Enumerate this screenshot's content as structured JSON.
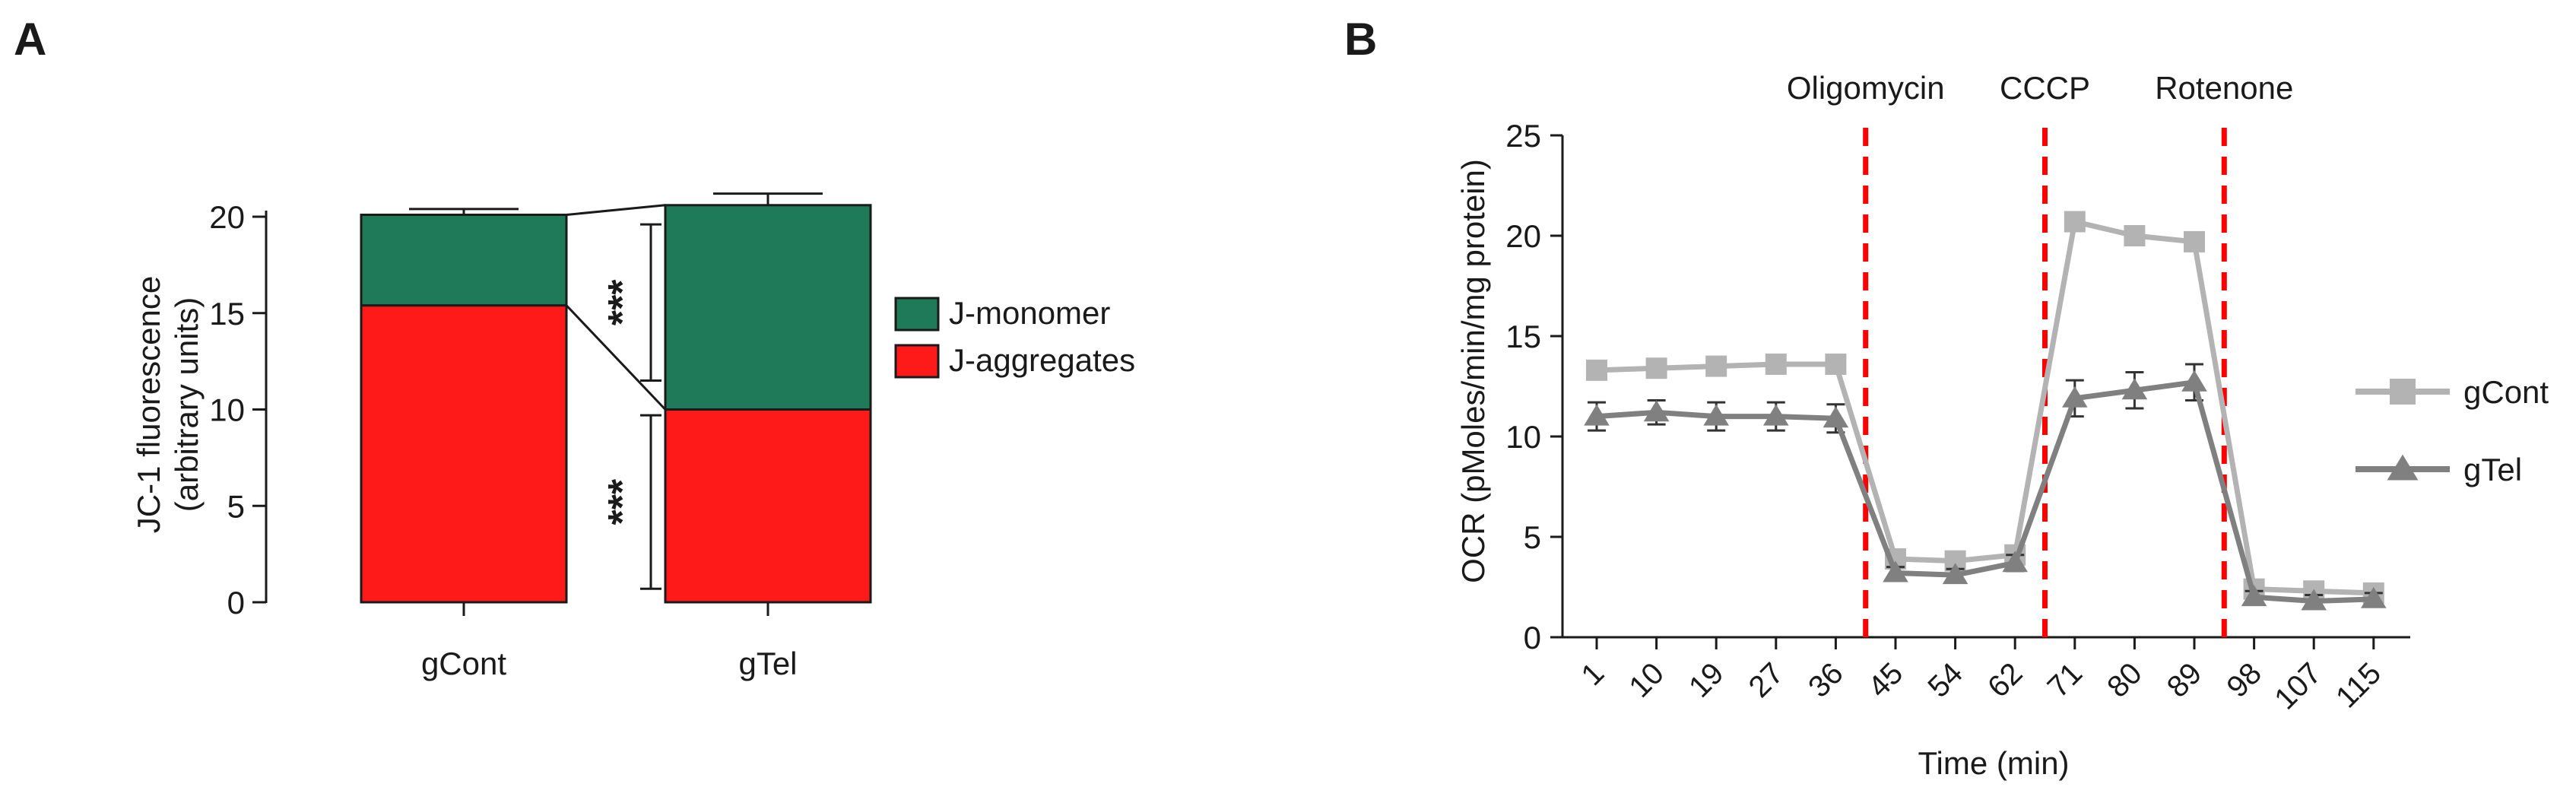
{
  "panels": [
    {
      "label": "A"
    },
    {
      "label": "B"
    }
  ],
  "chart_data": [
    {
      "panel": "A",
      "type": "bar",
      "stacked": true,
      "categories": [
        "gCont",
        "gTel"
      ],
      "series": [
        {
          "name": "J-aggregates",
          "values": [
            15.4,
            10.0
          ],
          "errors": [
            0.6,
            0.4
          ],
          "color": "#ff1a1a"
        },
        {
          "name": "J-monomer",
          "values": [
            4.7,
            10.6
          ],
          "errors": [
            0.3,
            0.6
          ],
          "color": "#1f7a5a"
        }
      ],
      "xlabel": "",
      "ylabel": [
        "JC-1 fluorescence",
        "(arbitrary units)"
      ],
      "ylim": [
        0,
        20
      ],
      "yticks": [
        0,
        5,
        10,
        15,
        20
      ],
      "legend_position": "right",
      "legend_order": [
        "J-monomer",
        "J-aggregates"
      ],
      "significance": [
        "***",
        "***"
      ],
      "grid": false
    },
    {
      "panel": "B",
      "type": "line",
      "x": [
        "1",
        "10",
        "19",
        "27",
        "36",
        "45",
        "54",
        "62",
        "71",
        "80",
        "89",
        "98",
        "107",
        "115"
      ],
      "series": [
        {
          "name": "gCont",
          "values": [
            13.3,
            13.4,
            13.5,
            13.6,
            13.6,
            3.9,
            3.8,
            4.1,
            20.7,
            20.0,
            19.7,
            2.4,
            2.3,
            2.2
          ],
          "color": "#b3b3b3",
          "marker": "square"
        },
        {
          "name": "gTel",
          "values": [
            11.0,
            11.2,
            11.0,
            11.0,
            10.9,
            3.2,
            3.1,
            3.7,
            11.9,
            12.3,
            12.7,
            2.0,
            1.8,
            1.9
          ],
          "errors": [
            0.7,
            0.6,
            0.7,
            0.7,
            0.7,
            0.3,
            0.3,
            0.4,
            0.9,
            0.9,
            0.9,
            0.3,
            0.3,
            0.3
          ],
          "color": "#808080",
          "marker": "triangle"
        }
      ],
      "xlabel": "Time (min)",
      "ylabel": "OCR (pMoles/min/mg protein)",
      "ylim": [
        0,
        25
      ],
      "yticks": [
        0,
        5,
        10,
        15,
        20,
        25
      ],
      "annotations": [
        {
          "text": "Oligomycin",
          "after_index": 4
        },
        {
          "text": "CCCP",
          "after_index": 7
        },
        {
          "text": "Rotenone",
          "after_index": 10
        }
      ],
      "annotation_color": "#ff0000",
      "legend_position": "right",
      "grid": false
    }
  ]
}
